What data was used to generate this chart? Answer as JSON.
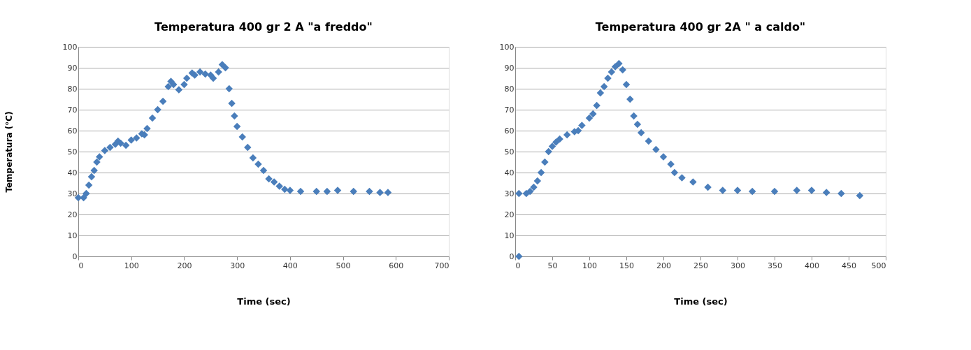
{
  "chart_data": [
    {
      "type": "scatter",
      "title": "Temperatura 400 gr 2 A \"a freddo\"",
      "xlabel": "Time (sec)",
      "ylabel": "Temperatura (°C)",
      "marker": "diamond",
      "grid": "y",
      "xlim": [
        0,
        700
      ],
      "xticks": [
        0,
        100,
        200,
        300,
        400,
        500,
        600,
        700
      ],
      "ylim": [
        0,
        100
      ],
      "yticks": [
        0,
        10,
        20,
        30,
        40,
        50,
        60,
        70,
        80,
        90,
        100
      ],
      "x": [
        0,
        10,
        15,
        20,
        25,
        30,
        35,
        40,
        50,
        60,
        70,
        75,
        80,
        90,
        100,
        110,
        120,
        125,
        130,
        140,
        150,
        160,
        170,
        175,
        180,
        190,
        200,
        205,
        215,
        220,
        230,
        240,
        250,
        255,
        265,
        272,
        278,
        285,
        290,
        295,
        300,
        310,
        320,
        330,
        340,
        350,
        360,
        370,
        380,
        390,
        400,
        420,
        450,
        470,
        490,
        520,
        550,
        570,
        585
      ],
      "series": [
        {
          "color": "#4a7ebb",
          "values": [
            28,
            28,
            30,
            34,
            38,
            41,
            45,
            47.5,
            50.5,
            52,
            53.5,
            55,
            54,
            53,
            55.5,
            56.5,
            58.5,
            58,
            61,
            66,
            70,
            74,
            81,
            83.5,
            82,
            79.5,
            82,
            85,
            87.5,
            86.5,
            88,
            87,
            86.5,
            85,
            88,
            91.5,
            90,
            80,
            73,
            67,
            62,
            57,
            52,
            47,
            44,
            41,
            37,
            35.5,
            33.5,
            32,
            31.5,
            31,
            31,
            31,
            31.5,
            31,
            31,
            30.5,
            30.5
          ]
        }
      ]
    },
    {
      "type": "scatter",
      "title": "Temperatura 400 gr   2A   \" a caldo\"",
      "xlabel": "Time (sec)",
      "marker": "diamond",
      "grid": "y",
      "xlim": [
        0,
        500
      ],
      "xticks": [
        0,
        50,
        100,
        150,
        200,
        250,
        300,
        350,
        400,
        450,
        500
      ],
      "ylim": [
        0,
        100
      ],
      "yticks": [
        0,
        10,
        20,
        30,
        40,
        50,
        60,
        70,
        80,
        90,
        100
      ],
      "x": [
        5,
        5,
        15,
        20,
        25,
        30,
        35,
        40,
        45,
        50,
        55,
        60,
        70,
        80,
        85,
        90,
        100,
        105,
        110,
        115,
        120,
        125,
        130,
        135,
        140,
        145,
        150,
        155,
        160,
        165,
        170,
        180,
        190,
        200,
        210,
        215,
        225,
        240,
        260,
        280,
        300,
        320,
        350,
        380,
        400,
        420,
        440,
        465
      ],
      "series": [
        {
          "color": "#4a7ebb",
          "values": [
            0,
            30,
            30,
            31,
            33,
            36,
            40,
            45,
            50,
            52.5,
            54.5,
            56,
            58,
            59.5,
            60,
            62.5,
            66,
            68,
            72,
            78,
            81,
            85,
            88,
            90.5,
            92,
            89,
            82,
            75,
            67,
            63,
            59,
            55,
            51,
            47.5,
            44,
            40,
            37.5,
            35.5,
            33,
            31.5,
            31.5,
            31,
            31,
            31.5,
            31.5,
            30.5,
            30,
            29
          ]
        }
      ]
    }
  ]
}
